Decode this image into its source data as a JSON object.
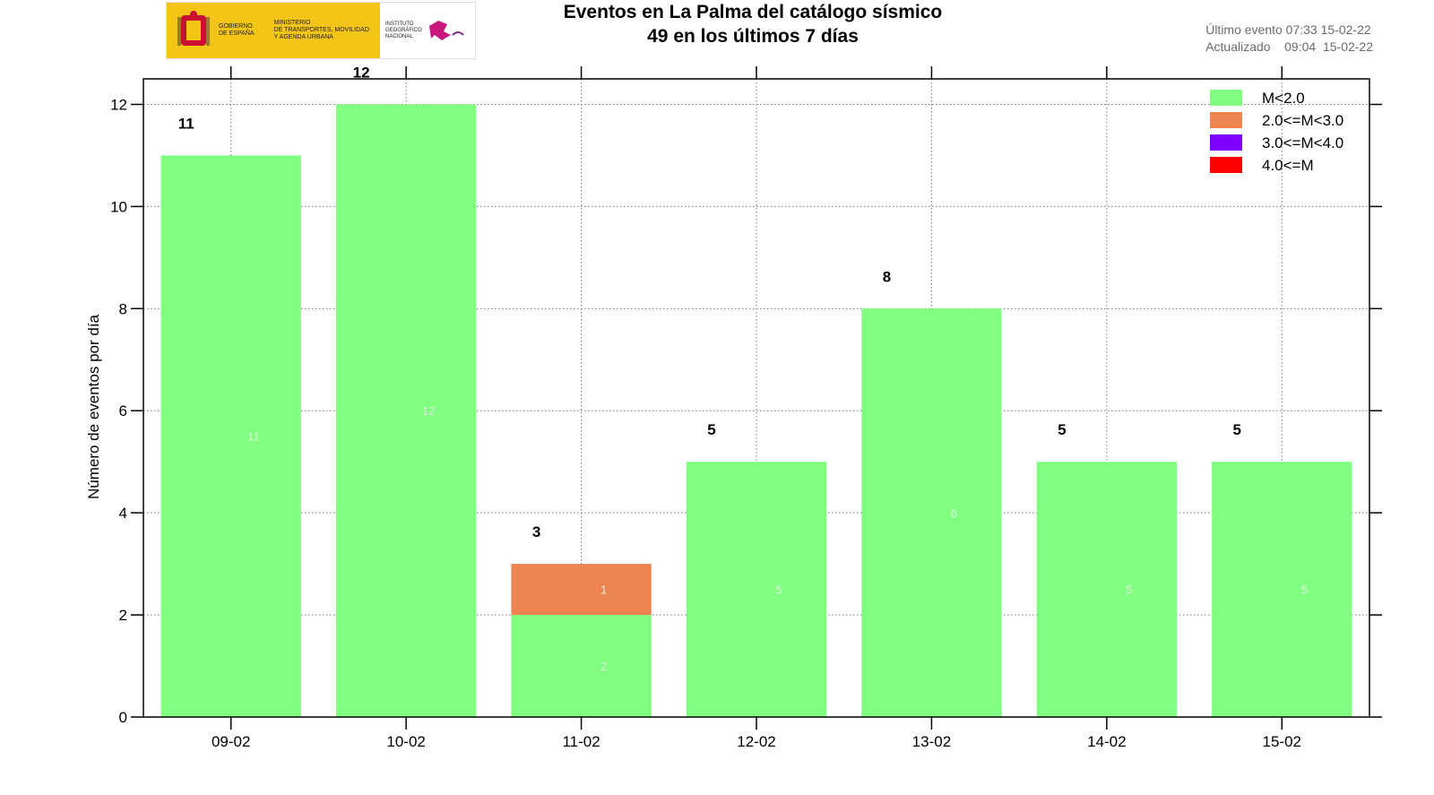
{
  "header": {
    "logo": {
      "gov_line1": "GOBIERNO",
      "gov_line2": "DE ESPAÑA",
      "min_line1": "MINISTERIO",
      "min_line2": "DE TRANSPORTES, MOVILIDAD",
      "min_line3": "Y AGENDA URBANA",
      "inst_line1": "INSTITUTO",
      "inst_line2": "GEOGRÁFICO",
      "inst_line3": "NACIONAL"
    },
    "title_line1": "Eventos en La Palma del catálogo sísmico",
    "title_line2": "49 en los últimos 7 días",
    "last_event": "Último evento 07:33 15-02-22",
    "updated": "Actualizado    09:04  15-02-22"
  },
  "colors": {
    "m_lt_2": "#80ff80",
    "m_2_3": "#ee8551",
    "m_3_4": "#8000ff",
    "m_ge_4": "#ff0000"
  },
  "chart_data": {
    "type": "bar",
    "stacked": true,
    "title": "Eventos en La Palma del catálogo sísmico",
    "subtitle": "49 en los últimos 7 días",
    "xlabel": "",
    "ylabel": "Número de eventos por día",
    "ylim": [
      0,
      12.5
    ],
    "yticks": [
      0,
      2,
      4,
      6,
      8,
      10,
      12
    ],
    "grid": true,
    "legend_position": "top-right",
    "categories": [
      "09-02",
      "10-02",
      "11-02",
      "12-02",
      "13-02",
      "14-02",
      "15-02"
    ],
    "series": [
      {
        "name": "M<2.0",
        "color": "#80ff80",
        "values": [
          11,
          12,
          2,
          5,
          8,
          5,
          5
        ]
      },
      {
        "name": "2.0<=M<3.0",
        "color": "#ee8551",
        "values": [
          0,
          0,
          1,
          0,
          0,
          0,
          0
        ]
      },
      {
        "name": "3.0<=M<4.0",
        "color": "#8000ff",
        "values": [
          0,
          0,
          0,
          0,
          0,
          0,
          0
        ]
      },
      {
        "name": "4.0<=M",
        "color": "#ff0000",
        "values": [
          0,
          0,
          0,
          0,
          0,
          0,
          0
        ]
      }
    ],
    "totals": [
      11,
      12,
      3,
      5,
      8,
      5,
      5
    ]
  }
}
